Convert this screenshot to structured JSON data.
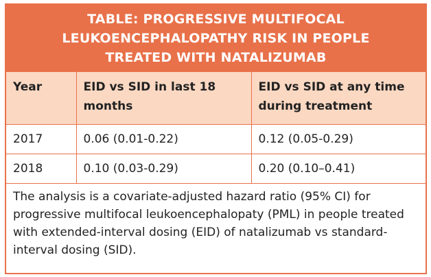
{
  "table": {
    "title": "TABLE: PROGRESSIVE MULTIFOCAL LEUKOENCEPHALOPATHY RISK IN PEOPLE TREATED WITH NATALIZUMAB",
    "header": [
      "Year",
      "EID vs SID in last 18 months",
      "EID vs SID at any time during treatment"
    ],
    "rows": [
      [
        "2017",
        "0.06 (0.01-0.22)",
        "0.12 (0.05-0.29)"
      ],
      [
        "2018",
        "0.10 (0.03-0.29)",
        "0.20 (0.10–0.41)"
      ]
    ],
    "note": "The analysis is a covariate-adjusted hazard ratio (95% CI) for progressive multifocal leukoencephalopaty (PML) in people treated with extended-interval dosing (EID) of natalizumab vs standard-interval dosing (SID)."
  }
}
